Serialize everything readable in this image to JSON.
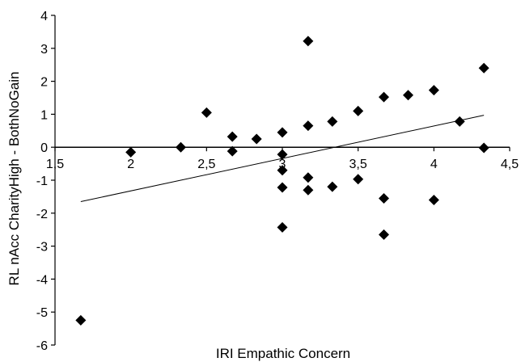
{
  "chart_data": {
    "type": "scatter",
    "title": "",
    "xlabel": "IRI Empathic Concern",
    "ylabel": "RL nAcc CharityHigh - BothNoGain",
    "xlim": [
      1.5,
      4.5
    ],
    "ylim": [
      -6,
      4
    ],
    "x_ticks": [
      1.5,
      2,
      2.5,
      3,
      3.5,
      4,
      4.5
    ],
    "x_tick_labels": [
      "1,5",
      "2",
      "2,5",
      "3",
      "3,5",
      "4",
      "4,5"
    ],
    "y_ticks": [
      4,
      3,
      2,
      1,
      0,
      -1,
      -2,
      -3,
      -4,
      -5,
      -6
    ],
    "y_tick_labels": [
      "4",
      "3",
      "2",
      "1",
      "0",
      "-1",
      "-2",
      "-3",
      "-4",
      "-5",
      "-6"
    ],
    "grid": false,
    "legend": "none",
    "marker": "diamond",
    "marker_color": "#000000",
    "series": [
      {
        "points": [
          {
            "x": 1.67,
            "y": -5.25
          },
          {
            "x": 2.0,
            "y": -0.15
          },
          {
            "x": 2.33,
            "y": 0.0
          },
          {
            "x": 2.5,
            "y": 1.05
          },
          {
            "x": 2.67,
            "y": 0.32
          },
          {
            "x": 2.67,
            "y": -0.12
          },
          {
            "x": 2.83,
            "y": 0.25
          },
          {
            "x": 3.0,
            "y": 0.45
          },
          {
            "x": 3.0,
            "y": -0.22
          },
          {
            "x": 3.0,
            "y": -0.7
          },
          {
            "x": 3.0,
            "y": -1.22
          },
          {
            "x": 3.0,
            "y": -2.43
          },
          {
            "x": 3.17,
            "y": 3.22
          },
          {
            "x": 3.17,
            "y": 0.65
          },
          {
            "x": 3.17,
            "y": -0.92
          },
          {
            "x": 3.17,
            "y": -1.3
          },
          {
            "x": 3.33,
            "y": 0.78
          },
          {
            "x": 3.33,
            "y": -1.2
          },
          {
            "x": 3.5,
            "y": 1.1
          },
          {
            "x": 3.5,
            "y": -0.97
          },
          {
            "x": 3.67,
            "y": 1.52
          },
          {
            "x": 3.67,
            "y": -1.55
          },
          {
            "x": 3.67,
            "y": -2.65
          },
          {
            "x": 3.83,
            "y": 1.58
          },
          {
            "x": 4.0,
            "y": 1.73
          },
          {
            "x": 4.0,
            "y": -1.6
          },
          {
            "x": 4.17,
            "y": 0.78
          },
          {
            "x": 4.33,
            "y": 2.4
          },
          {
            "x": 4.33,
            "y": -0.02
          }
        ]
      }
    ],
    "trendline": {
      "type": "linear",
      "start": {
        "x": 1.67,
        "y": -1.65
      },
      "end": {
        "x": 4.33,
        "y": 0.97
      }
    }
  }
}
